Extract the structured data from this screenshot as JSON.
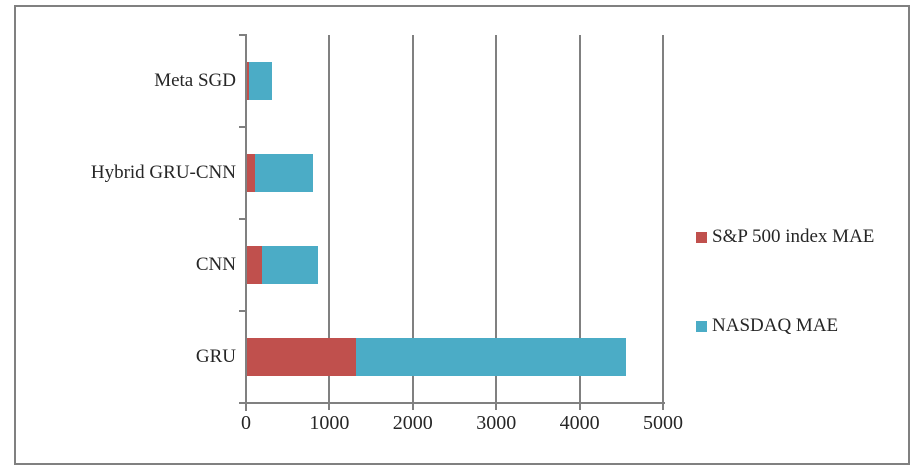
{
  "chart_data": {
    "type": "bar",
    "orientation": "horizontal",
    "stacked": true,
    "title": "",
    "xlabel": "",
    "ylabel": "",
    "categories": [
      "Meta SGD",
      "Hybrid GRU-CNN",
      "CNN",
      "GRU"
    ],
    "series": [
      {
        "name": "S&P 500 index MAE",
        "color": "#C0504D",
        "values": [
          25,
          100,
          180,
          1310
        ]
      },
      {
        "name": "NASDAQ MAE",
        "color": "#4BACC6",
        "values": [
          270,
          690,
          670,
          3230
        ]
      }
    ],
    "x_ticks": [
      0,
      1000,
      2000,
      3000,
      4000,
      5000
    ],
    "x_tick_labels": [
      "0",
      "1000",
      "2000",
      "3000",
      "4000",
      "5000"
    ],
    "xlim": [
      0,
      5000
    ],
    "grid": "vertical-major",
    "legend_position": "right"
  },
  "colors": {
    "frame": "#808080",
    "axis": "#808080",
    "grid": "#808080",
    "text": "#262626",
    "background": "#ffffff"
  }
}
